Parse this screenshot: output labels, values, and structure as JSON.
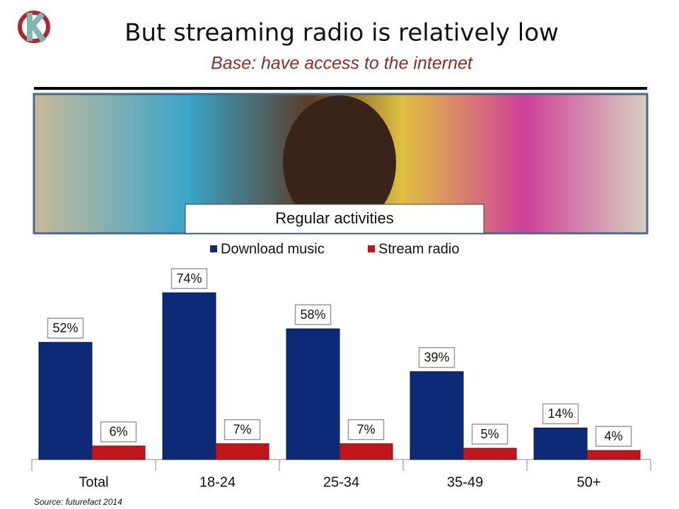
{
  "chart_data": {
    "type": "bar",
    "title": "But streaming radio is relatively low",
    "subtitle": "Base: have access to the internet",
    "chart_title": "Regular activities",
    "source": "Source: futurefact 2014",
    "categories": [
      "Total",
      "18-24",
      "25-34",
      "35-49",
      "50+"
    ],
    "series": [
      {
        "name": "Download music",
        "color": "#0d2a78",
        "values": [
          52,
          74,
          58,
          39,
          14
        ],
        "value_labels": [
          "52%",
          "74%",
          "58%",
          "39%",
          "14%"
        ]
      },
      {
        "name": "Stream radio",
        "color": "#c0161b",
        "values": [
          6,
          7,
          7,
          5,
          4
        ],
        "value_labels": [
          "6%",
          "7%",
          "7%",
          "5%",
          "4%"
        ]
      }
    ],
    "ylim": [
      0,
      80
    ],
    "legend": "top"
  }
}
